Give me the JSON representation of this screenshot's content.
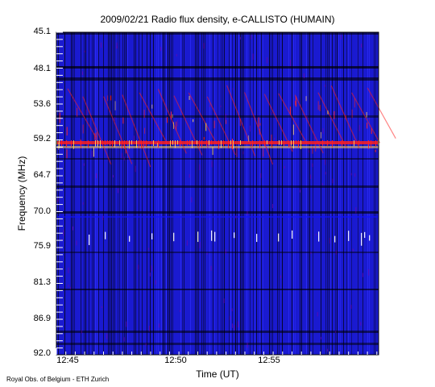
{
  "chart_data": {
    "type": "heatmap",
    "title": "2009/02/21  Radio flux density, e-CALLISTO (HUMAIN)",
    "xlabel": "Time (UT)",
    "ylabel": "Frequency (MHz)",
    "x_ticks": [
      "12:45",
      "12:50",
      "12:55"
    ],
    "y_ticks": [
      "45.1",
      "48.1",
      "53.6",
      "59.2",
      "64.7",
      "70.0",
      "75.9",
      "81.3",
      "86.9",
      "92.0"
    ],
    "ylim": [
      45.1,
      92.0
    ],
    "colormap": [
      "#000000",
      "#1010ff",
      "#8000a0",
      "#ff2020",
      "#ffd060"
    ],
    "credit": "Royal Obs. of Belgium - ETH Zurich"
  }
}
